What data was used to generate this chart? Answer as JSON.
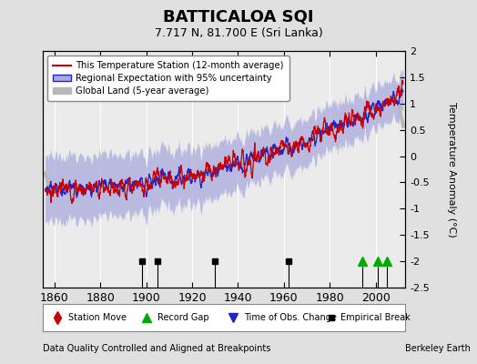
{
  "title": "BATTICALOA SQI",
  "subtitle": "7.717 N, 81.700 E (Sri Lanka)",
  "ylabel": "Temperature Anomaly (°C)",
  "xlabel_note": "Data Quality Controlled and Aligned at Breakpoints",
  "credit": "Berkeley Earth",
  "xlim": [
    1855,
    2013
  ],
  "ylim": [
    -2.5,
    2.0
  ],
  "yticks": [
    -2.5,
    -2,
    -1.5,
    -1,
    -0.5,
    0,
    0.5,
    1,
    1.5,
    2
  ],
  "xticks": [
    1860,
    1880,
    1900,
    1920,
    1940,
    1960,
    1980,
    2000
  ],
  "bg_color": "#e0e0e0",
  "plot_bg_color": "#ebebeb",
  "station_color": "#cc0000",
  "regional_color": "#2222cc",
  "regional_fill_color": "#aaaadd",
  "global_color": "#b8b8b8",
  "empirical_breaks": [
    1898,
    1905,
    1930,
    1962
  ],
  "record_gaps": [
    1994,
    2001,
    2005
  ]
}
